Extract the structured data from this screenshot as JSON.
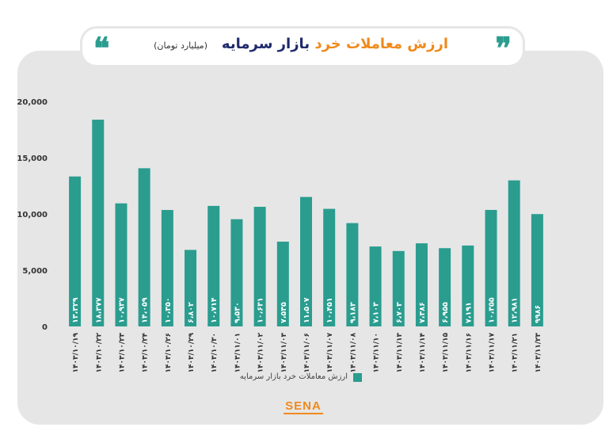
{
  "header": {
    "title_part1": "ارزش معاملات خرد",
    "title_part2": "بازار سرمایه",
    "unit": "(میلیارد تومان)"
  },
  "logo": {
    "text": "SENA"
  },
  "colors": {
    "bar": "#2a9d8f",
    "accent": "#f08a1c",
    "title_dark": "#1f2a6b",
    "panel": "#e6e6e6"
  },
  "chart_data": {
    "type": "bar",
    "categories": [
      "۱۴۰۳/۱۰/۱۹",
      "۱۴۰۳/۱۰/۲۲",
      "۱۴۰۳/۱۰/۲۳",
      "۱۴۰۳/۱۰/۲۴",
      "۱۴۰۳/۱۰/۲۶",
      "۱۴۰۳/۱۰/۲۹",
      "۱۴۰۳/۱۰/۳۰",
      "۱۴۰۳/۱۱/۰۱",
      "۱۴۰۳/۱۱/۰۲",
      "۱۴۰۳/۱۱/۰۳",
      "۱۴۰۳/۱۱/۰۶",
      "۱۴۰۳/۱۱/۰۷",
      "۱۴۰۳/۱۱/۰۸",
      "۱۴۰۳/۱۱/۱۰",
      "۱۴۰۳/۱۱/۱۳",
      "۱۴۰۳/۱۱/۱۴",
      "۱۴۰۳/۱۱/۱۵",
      "۱۴۰۳/۱۱/۱۶",
      "۱۴۰۳/۱۱/۱۷",
      "۱۴۰۳/۱۱/۲۱",
      "۱۴۰۳/۱۱/۲۳"
    ],
    "values": [
      13329,
      18377,
      10937,
      14059,
      10350,
      6802,
      10714,
      9530,
      10631,
      7535,
      11507,
      10451,
      9183,
      7103,
      6703,
      7386,
      6955,
      7191,
      10355,
      12981,
      9986
    ],
    "value_labels": [
      "۱۳،۳۲۹",
      "۱۸،۳۷۷",
      "۱۰،۹۳۷",
      "۱۴،۰۵۹",
      "۱۰،۳۵۰",
      "۶،۸۰۲",
      "۱۰،۷۱۴",
      "۹،۵۳۰",
      "۱۰،۶۳۱",
      "۷،۵۳۵",
      "۱۱،۵۰۷",
      "۱۰،۴۵۱",
      "۹،۱۸۳",
      "۷،۱۰۳",
      "۶،۷۰۳",
      "۷،۳۸۶",
      "۶،۹۵۵",
      "۷،۱۹۱",
      "۱۰،۳۵۵",
      "۱۲،۹۸۱",
      "۹۹۸۶"
    ],
    "yticks": [
      "0",
      "5,000",
      "10,000",
      "15,000",
      "20,000"
    ],
    "ylim": [
      0,
      20000
    ],
    "legend": [
      "ارزش معاملات خرد بازار سرمایه"
    ],
    "legend_position": "bottom",
    "grid": false
  }
}
